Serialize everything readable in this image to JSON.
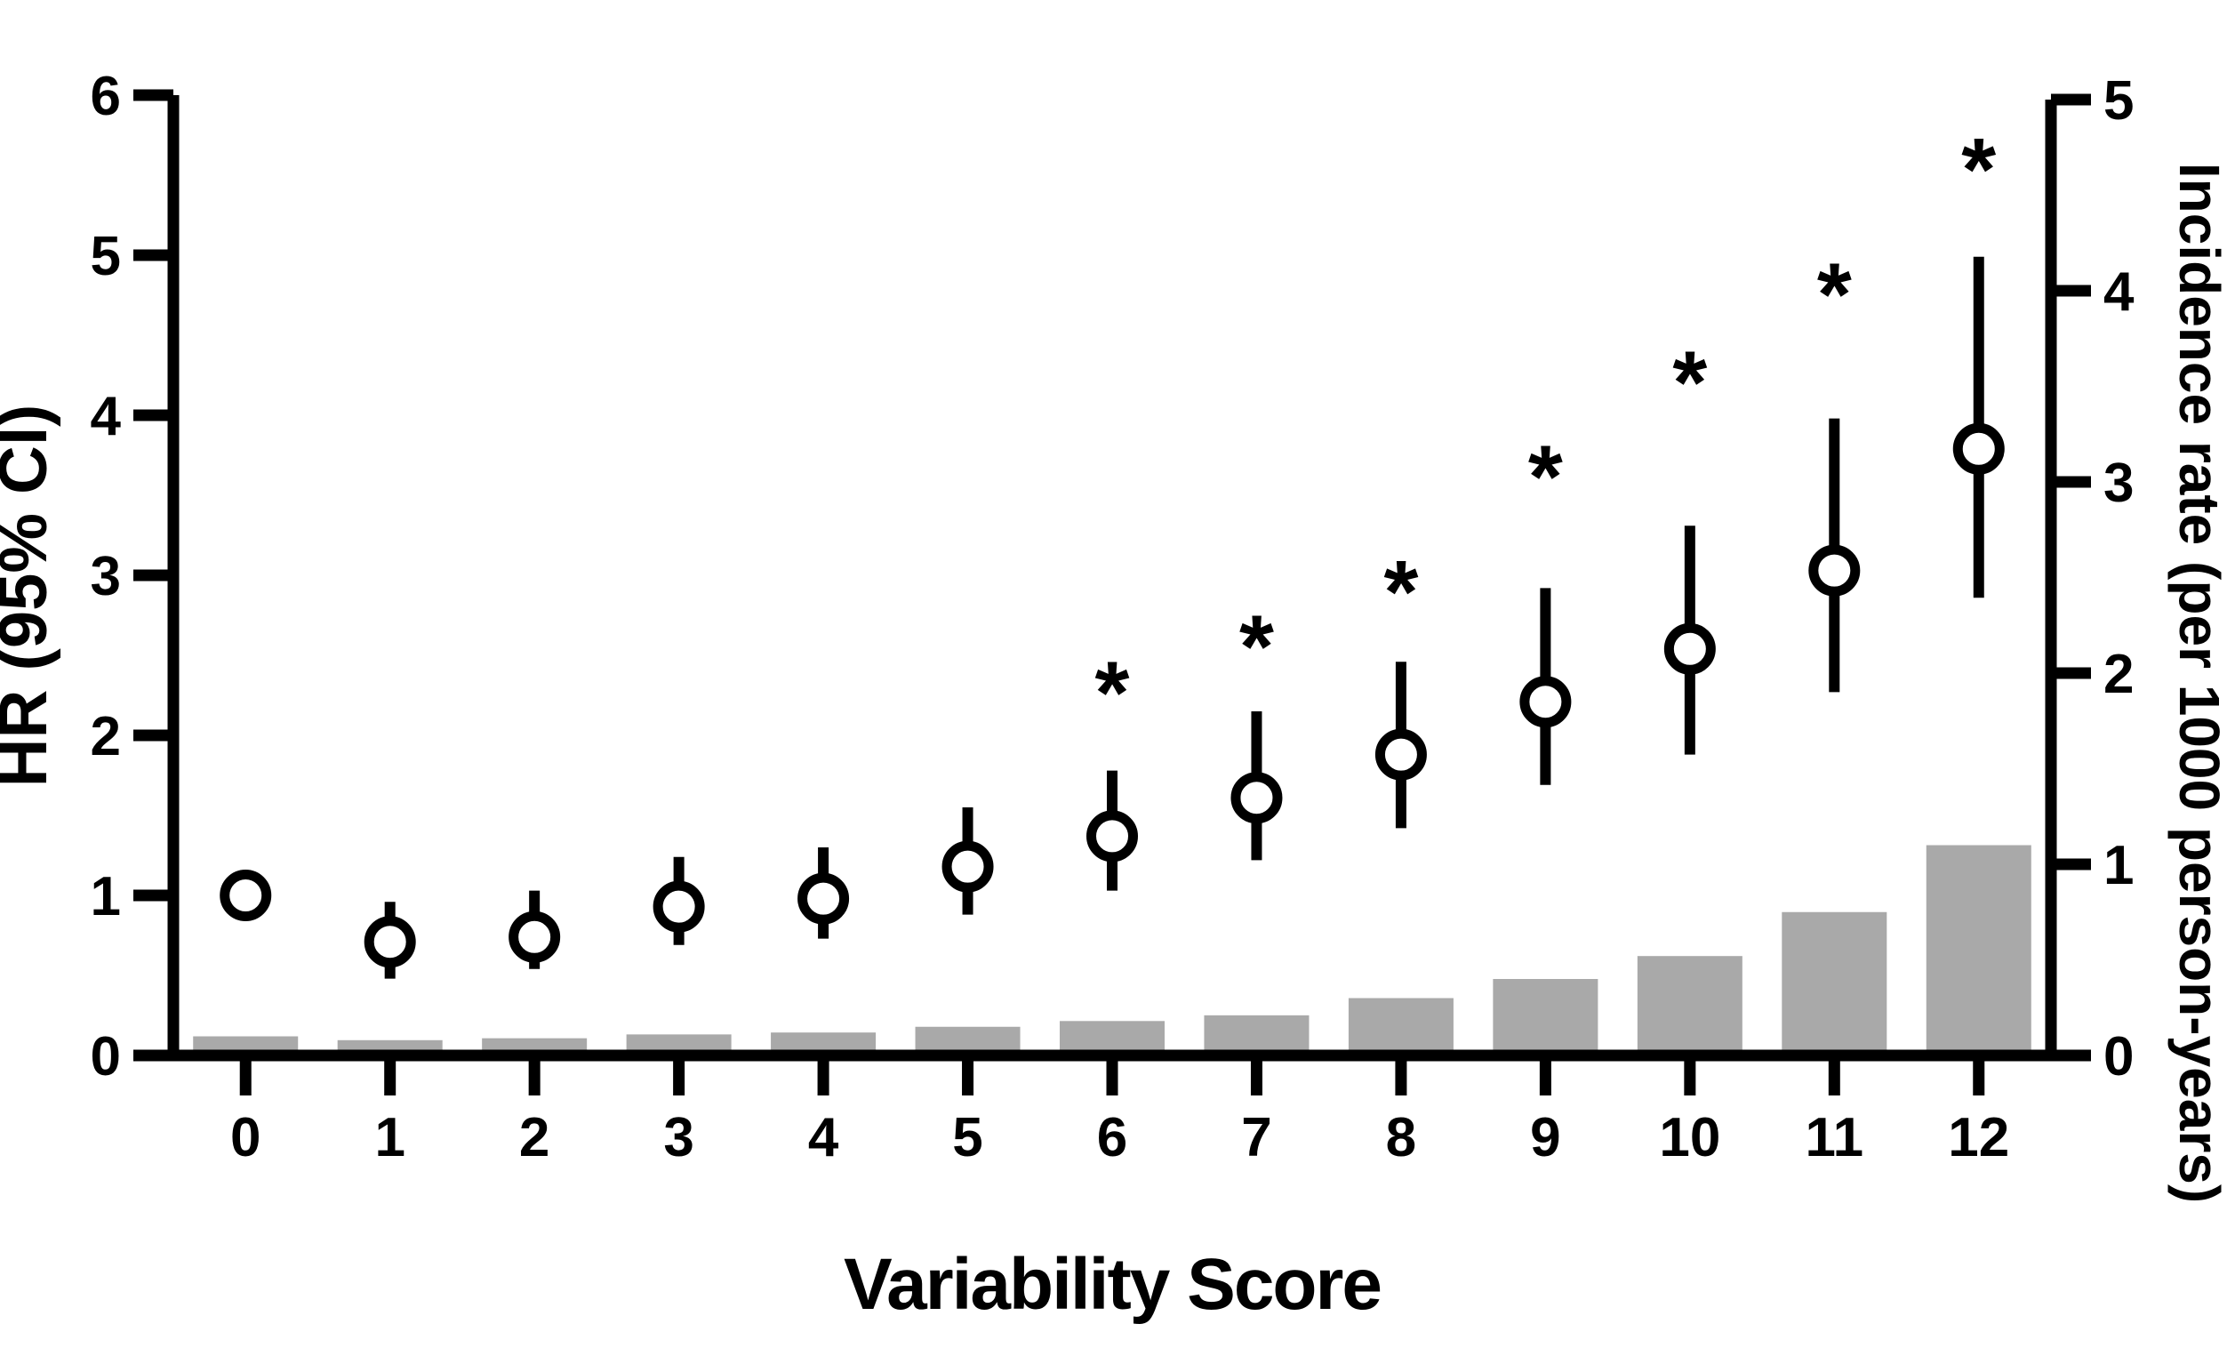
{
  "figure": {
    "background": "#ffffff",
    "xlabel": "Variability Score",
    "ylabel_left": "HR (95% CI)",
    "ylabel_right": "Incidence rate (per 1000 person-years)",
    "significance_symbol": "*"
  },
  "chart_data": {
    "type": "combo",
    "subtype": [
      "scatter-with-ci",
      "bar"
    ],
    "title": "",
    "xlabel": "Variability Score",
    "ylabel_left": "HR (95% CI)",
    "ylabel_right": "Incidence rate (per 1000 person-years)",
    "categories": [
      0,
      1,
      2,
      3,
      4,
      5,
      6,
      7,
      8,
      9,
      10,
      11,
      12
    ],
    "x_tick_labels": [
      "0",
      "1",
      "2",
      "3",
      "4",
      "5",
      "6",
      "7",
      "8",
      "9",
      "10",
      "11",
      "12"
    ],
    "left_axis": {
      "range": [
        0,
        6
      ],
      "ticks": [
        0,
        1,
        2,
        3,
        4,
        5,
        6
      ],
      "tick_labels": [
        "0",
        "1",
        "2",
        "3",
        "4",
        "5",
        "6"
      ],
      "grid": false
    },
    "right_axis": {
      "range": [
        0,
        5
      ],
      "ticks": [
        0,
        1,
        2,
        3,
        4,
        5
      ],
      "tick_labels": [
        "0",
        "1",
        "2",
        "3",
        "4",
        "5"
      ],
      "grid": false
    },
    "series": [
      {
        "name": "HR (95% CI)",
        "type": "scatter-ci",
        "axis": "left",
        "values": [
          1.0,
          0.71,
          0.74,
          0.93,
          0.98,
          1.18,
          1.37,
          1.61,
          1.88,
          2.21,
          2.54,
          3.03,
          3.79
        ],
        "ci_low": [
          null,
          0.48,
          0.54,
          0.69,
          0.73,
          0.88,
          1.03,
          1.22,
          1.42,
          1.69,
          1.88,
          2.27,
          2.86
        ],
        "ci_high": [
          null,
          0.96,
          1.03,
          1.24,
          1.3,
          1.55,
          1.78,
          2.15,
          2.46,
          2.92,
          3.31,
          3.98,
          4.99
        ],
        "significant": [
          false,
          false,
          false,
          false,
          false,
          false,
          true,
          true,
          true,
          true,
          true,
          true,
          true
        ],
        "asterisk_y_left_axis": [
          null,
          null,
          null,
          null,
          null,
          null,
          2.33,
          2.62,
          2.96,
          3.68,
          4.27,
          4.82,
          5.6
        ]
      },
      {
        "name": "Incidence rate (per 1000 person-years)",
        "type": "bar",
        "axis": "right",
        "values": [
          0.1,
          0.08,
          0.09,
          0.11,
          0.12,
          0.15,
          0.18,
          0.21,
          0.3,
          0.4,
          0.52,
          0.75,
          1.1
        ]
      }
    ],
    "legend": {
      "visible": false
    },
    "colors": {
      "bar_fill": "#a9a9a9",
      "marker_fill": "#ffffff",
      "marker_stroke": "#000000",
      "axis": "#000000",
      "text": "#000000"
    }
  }
}
